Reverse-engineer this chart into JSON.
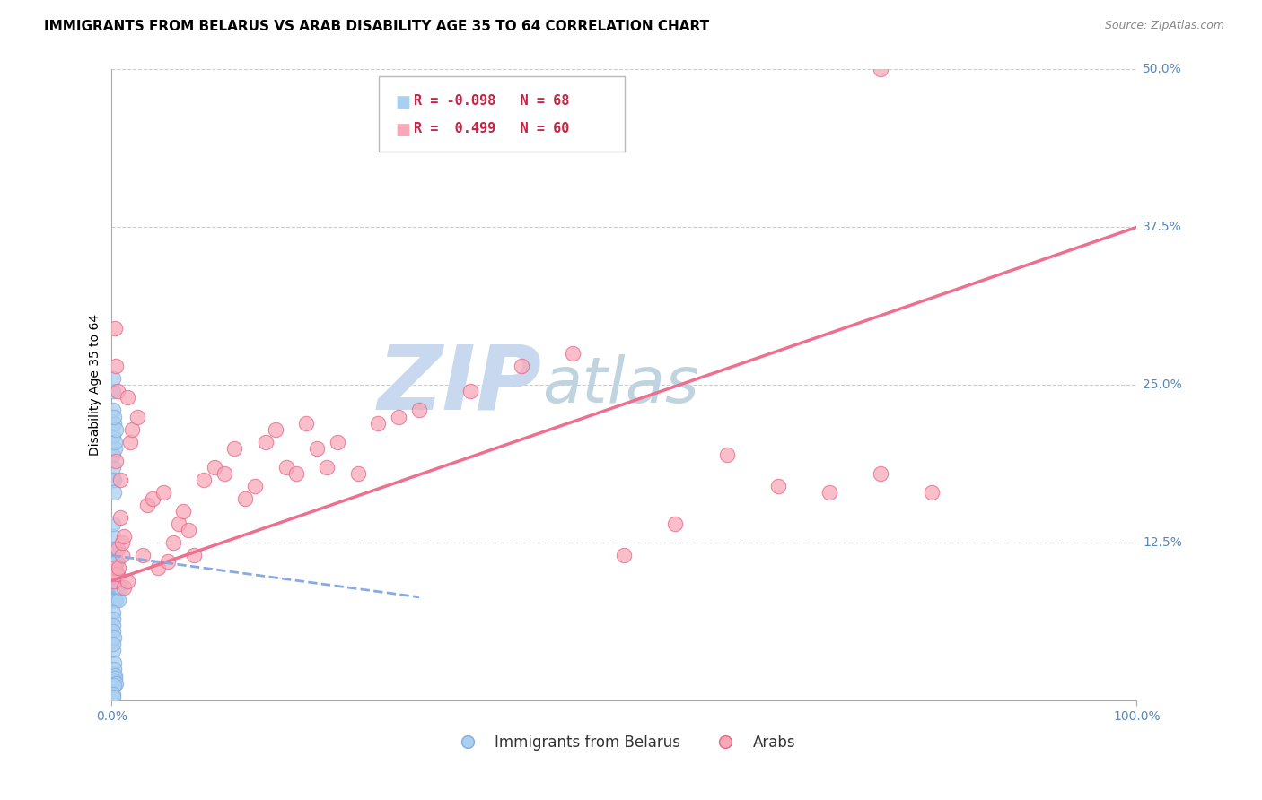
{
  "title": "IMMIGRANTS FROM BELARUS VS ARAB DISABILITY AGE 35 TO 64 CORRELATION CHART",
  "source": "Source: ZipAtlas.com",
  "ylabel_label": "Disability Age 35 to 64",
  "legend_label1": "Immigrants from Belarus",
  "legend_label2": "Arabs",
  "R1": -0.098,
  "N1": 68,
  "R2": 0.499,
  "N2": 60,
  "color_blue": "#A8D0F0",
  "color_pink": "#F8A8B8",
  "edge_blue": "#88AADE",
  "edge_pink": "#E86888",
  "line_blue_color": "#88AADE",
  "line_pink_color": "#EE7090",
  "watermark_zip": "ZIP",
  "watermark_atlas": "atlas",
  "watermark_color_zip": "#C8D8EE",
  "watermark_color_atlas": "#C0D4E0",
  "blue_points_x": [
    0.001,
    0.001,
    0.001,
    0.001,
    0.001,
    0.001,
    0.001,
    0.001,
    0.001,
    0.001,
    0.002,
    0.002,
    0.002,
    0.002,
    0.002,
    0.002,
    0.002,
    0.002,
    0.002,
    0.003,
    0.003,
    0.003,
    0.003,
    0.003,
    0.003,
    0.004,
    0.004,
    0.004,
    0.004,
    0.005,
    0.005,
    0.005,
    0.006,
    0.006,
    0.007,
    0.007,
    0.008,
    0.001,
    0.001,
    0.001,
    0.002,
    0.002,
    0.003,
    0.001,
    0.002,
    0.003,
    0.004,
    0.001,
    0.002,
    0.001,
    0.001,
    0.001,
    0.002,
    0.002,
    0.003,
    0.001,
    0.001,
    0.001,
    0.001,
    0.002,
    0.001,
    0.003,
    0.002,
    0.004,
    0.002,
    0.001,
    0.001
  ],
  "blue_points_y": [
    0.1,
    0.11,
    0.12,
    0.13,
    0.14,
    0.09,
    0.1,
    0.11,
    0.08,
    0.09,
    0.1,
    0.11,
    0.12,
    0.09,
    0.1,
    0.11,
    0.08,
    0.09,
    0.1,
    0.1,
    0.11,
    0.12,
    0.09,
    0.1,
    0.08,
    0.09,
    0.1,
    0.11,
    0.08,
    0.09,
    0.1,
    0.11,
    0.09,
    0.1,
    0.09,
    0.08,
    0.09,
    0.175,
    0.185,
    0.195,
    0.175,
    0.165,
    0.2,
    0.21,
    0.22,
    0.205,
    0.215,
    0.23,
    0.225,
    0.245,
    0.255,
    0.04,
    0.03,
    0.025,
    0.02,
    0.07,
    0.065,
    0.06,
    0.055,
    0.05,
    0.045,
    0.018,
    0.016,
    0.014,
    0.012,
    0.005,
    0.003
  ],
  "pink_points_x": [
    0.002,
    0.003,
    0.004,
    0.005,
    0.006,
    0.007,
    0.008,
    0.01,
    0.012,
    0.015,
    0.018,
    0.02,
    0.025,
    0.03,
    0.035,
    0.04,
    0.045,
    0.05,
    0.055,
    0.06,
    0.065,
    0.07,
    0.075,
    0.08,
    0.09,
    0.1,
    0.11,
    0.12,
    0.13,
    0.14,
    0.15,
    0.16,
    0.17,
    0.18,
    0.19,
    0.2,
    0.21,
    0.22,
    0.24,
    0.26,
    0.28,
    0.3,
    0.35,
    0.4,
    0.45,
    0.5,
    0.55,
    0.6,
    0.65,
    0.7,
    0.75,
    0.8,
    0.003,
    0.004,
    0.006,
    0.008,
    0.01,
    0.012,
    0.015,
    0.75
  ],
  "pink_points_y": [
    0.095,
    0.105,
    0.19,
    0.1,
    0.12,
    0.105,
    0.145,
    0.115,
    0.09,
    0.095,
    0.205,
    0.215,
    0.225,
    0.115,
    0.155,
    0.16,
    0.105,
    0.165,
    0.11,
    0.125,
    0.14,
    0.15,
    0.135,
    0.115,
    0.175,
    0.185,
    0.18,
    0.2,
    0.16,
    0.17,
    0.205,
    0.215,
    0.185,
    0.18,
    0.22,
    0.2,
    0.185,
    0.205,
    0.18,
    0.22,
    0.225,
    0.23,
    0.245,
    0.265,
    0.275,
    0.115,
    0.14,
    0.195,
    0.17,
    0.165,
    0.18,
    0.165,
    0.295,
    0.265,
    0.245,
    0.175,
    0.125,
    0.13,
    0.24,
    0.5
  ],
  "pink_trend_x0": 0.0,
  "pink_trend_y0": 0.095,
  "pink_trend_x1": 1.0,
  "pink_trend_y1": 0.375,
  "blue_trend_x0": 0.0,
  "blue_trend_y0": 0.115,
  "blue_trend_x1": 0.3,
  "blue_trend_y1": 0.082,
  "xlim": [
    0.0,
    1.0
  ],
  "ylim": [
    0.0,
    0.5
  ],
  "title_fontsize": 11,
  "axis_label_fontsize": 10,
  "tick_fontsize": 10,
  "legend_fontsize": 11,
  "source_fontsize": 9
}
